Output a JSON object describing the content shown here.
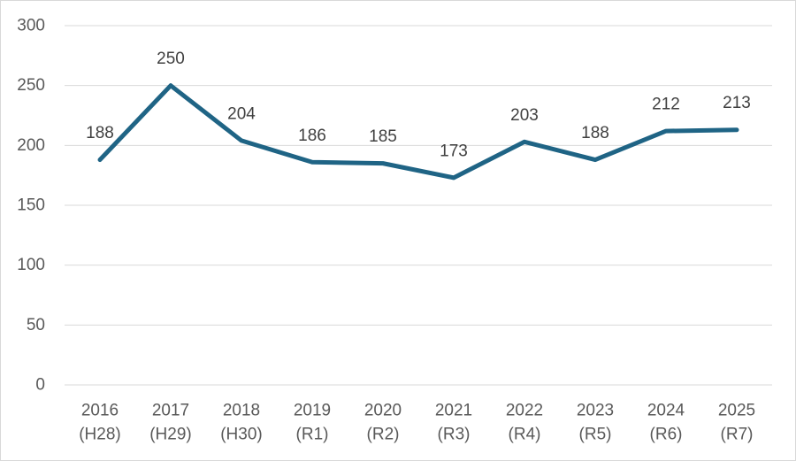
{
  "chart_data": {
    "type": "line",
    "title": "",
    "xlabel": "",
    "ylabel": "",
    "categories": [
      {
        "year": "2016",
        "era": "(H28)"
      },
      {
        "year": "2017",
        "era": "(H29)"
      },
      {
        "year": "2018",
        "era": "(H30)"
      },
      {
        "year": "2019",
        "era": "(R1)"
      },
      {
        "year": "2020",
        "era": "(R2)"
      },
      {
        "year": "2021",
        "era": "(R3)"
      },
      {
        "year": "2022",
        "era": "(R4)"
      },
      {
        "year": "2023",
        "era": "(R5)"
      },
      {
        "year": "2024",
        "era": "(R6)"
      },
      {
        "year": "2025",
        "era": "(R7)"
      }
    ],
    "values": [
      188,
      250,
      204,
      186,
      185,
      173,
      203,
      188,
      212,
      213
    ],
    "ylim": [
      0,
      300
    ],
    "yticks": [
      0,
      50,
      100,
      150,
      200,
      250,
      300
    ],
    "grid": true,
    "legend": "none",
    "data_labels": true,
    "colors": {
      "line": "#1F6485",
      "gridline": "#D9D9D9",
      "axis_text": "#595959",
      "data_label": "#404040",
      "background": "#FFFFFF",
      "border": "#D9D9D9"
    }
  }
}
